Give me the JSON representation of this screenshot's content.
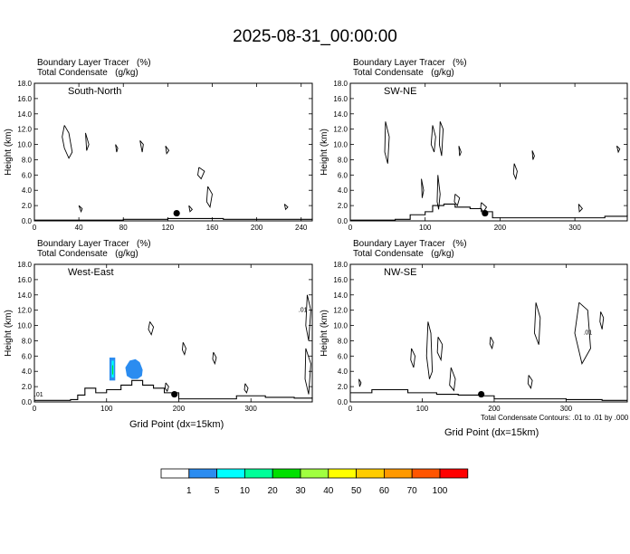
{
  "title": "2025-08-31_00:00:00",
  "panel_titles": {
    "line1": "Boundary Layer Tracer   (%)",
    "line2": "Total Condensate   (g/kg)"
  },
  "x_axis_label": "Grid Point (dx=15km)",
  "contour_note": "Total Condensate Contours: .01 to .01 by .000",
  "colorbar": {
    "colors": [
      "#ffffff",
      "#2b8cf0",
      "#00ffff",
      "#00ff99",
      "#00e000",
      "#a0ff40",
      "#ffff00",
      "#ffcc00",
      "#ff9900",
      "#ff5500",
      "#ff0000"
    ],
    "labels": [
      "1",
      "5",
      "10",
      "20",
      "30",
      "40",
      "50",
      "60",
      "70",
      "100"
    ]
  },
  "chart_data": [
    {
      "type": "contour",
      "name": "South-North",
      "ylabel": "Height (km)",
      "xlim": [
        0,
        250
      ],
      "ylim": [
        0,
        18
      ],
      "xticks": [
        "0",
        "40",
        "80",
        "120",
        "160",
        "200",
        "240"
      ],
      "yticks": [
        "0.0",
        "2.0",
        "4.0",
        "6.0",
        "8.0",
        "10.0",
        "12.0",
        "14.0",
        "16.0",
        "18.0"
      ],
      "marker": {
        "x": 128,
        "y": 1.0
      },
      "terrain": [
        [
          0,
          0.1
        ],
        [
          60,
          0.1
        ],
        [
          80,
          0.2
        ],
        [
          100,
          0.2
        ],
        [
          120,
          0.3
        ],
        [
          150,
          0.3
        ],
        [
          170,
          0.2
        ],
        [
          220,
          0.2
        ],
        [
          250,
          0.3
        ]
      ],
      "contours": [
        {
          "x": [
            27,
            31,
            34,
            31,
            27,
            25,
            27
          ],
          "y": [
            12.5,
            11.5,
            9.0,
            8.2,
            9.5,
            11,
            12.5
          ]
        },
        {
          "x": [
            46,
            49,
            47,
            46
          ],
          "y": [
            11.5,
            10,
            9.2,
            11.5
          ]
        },
        {
          "x": [
            73,
            75,
            74,
            73
          ],
          "y": [
            10,
            9.5,
            9,
            10
          ]
        },
        {
          "x": [
            95,
            98,
            97,
            95
          ],
          "y": [
            10.5,
            10,
            9,
            10.5
          ]
        },
        {
          "x": [
            118,
            121,
            119,
            118
          ],
          "y": [
            9.8,
            9.2,
            8.8,
            9.8
          ]
        },
        {
          "x": [
            148,
            153,
            150,
            147,
            148
          ],
          "y": [
            7,
            6.5,
            5.5,
            6,
            7
          ]
        },
        {
          "x": [
            156,
            160,
            158,
            155,
            156
          ],
          "y": [
            4.5,
            3.5,
            1.8,
            2.5,
            4.5
          ]
        },
        {
          "x": [
            40,
            43,
            42,
            40
          ],
          "y": [
            2,
            1.6,
            1.2,
            2
          ]
        },
        {
          "x": [
            139,
            142,
            140,
            139
          ],
          "y": [
            2,
            1.5,
            1.2,
            2
          ]
        },
        {
          "x": [
            225,
            228,
            226,
            225
          ],
          "y": [
            2.2,
            1.8,
            1.5,
            2.2
          ]
        }
      ],
      "shaded": []
    },
    {
      "type": "contour",
      "name": "SW-NE",
      "ylabel": "Height (km)",
      "xlim": [
        0,
        370
      ],
      "ylim": [
        0,
        18
      ],
      "xticks": [
        "0",
        "100",
        "200",
        "300"
      ],
      "yticks": [
        "0.0",
        "2.0",
        "4.0",
        "6.0",
        "8.0",
        "10.0",
        "12.0",
        "14.0",
        "16.0",
        "18.0"
      ],
      "marker": {
        "x": 180,
        "y": 1.0
      },
      "terrain": [
        [
          0,
          0.1
        ],
        [
          60,
          0.2
        ],
        [
          80,
          0.8
        ],
        [
          100,
          1.2
        ],
        [
          110,
          2.0
        ],
        [
          125,
          2.2
        ],
        [
          140,
          1.8
        ],
        [
          160,
          1.6
        ],
        [
          175,
          1.2
        ],
        [
          190,
          0.4
        ],
        [
          260,
          0.4
        ],
        [
          300,
          0.4
        ],
        [
          340,
          0.6
        ],
        [
          370,
          0.8
        ]
      ],
      "contours": [
        {
          "x": [
            47,
            52,
            50,
            46,
            47
          ],
          "y": [
            13,
            11,
            7.5,
            9,
            13
          ]
        },
        {
          "x": [
            110,
            114,
            112,
            108,
            110
          ],
          "y": [
            12.5,
            11,
            9,
            10,
            12.5
          ]
        },
        {
          "x": [
            120,
            124,
            122,
            119,
            120
          ],
          "y": [
            13,
            12,
            8.5,
            10,
            13
          ]
        },
        {
          "x": [
            145,
            148,
            146,
            145
          ],
          "y": [
            9.8,
            9,
            8.5,
            9.8
          ]
        },
        {
          "x": [
            219,
            223,
            221,
            218,
            219
          ],
          "y": [
            7.5,
            6.5,
            5.5,
            6.2,
            7.5
          ]
        },
        {
          "x": [
            243,
            246,
            244,
            243
          ],
          "y": [
            9.2,
            8.5,
            8,
            9.2
          ]
        },
        {
          "x": [
            117,
            120,
            118,
            116,
            117
          ],
          "y": [
            6,
            3.5,
            1.5,
            2.5,
            6
          ]
        },
        {
          "x": [
            95,
            98,
            96,
            95
          ],
          "y": [
            5.5,
            4,
            3,
            5.5
          ]
        },
        {
          "x": [
            140,
            146,
            143,
            139,
            140
          ],
          "y": [
            3.5,
            3,
            2,
            2.5,
            3.5
          ]
        },
        {
          "x": [
            175,
            182,
            178,
            174,
            175
          ],
          "y": [
            2.4,
            1.8,
            1.2,
            1.6,
            2.4
          ]
        },
        {
          "x": [
            305,
            310,
            306,
            305
          ],
          "y": [
            2.2,
            1.6,
            1.2,
            2.2
          ]
        },
        {
          "x": [
            356,
            360,
            358,
            356
          ],
          "y": [
            9.8,
            9.4,
            9,
            9.8
          ]
        }
      ],
      "shaded": []
    },
    {
      "type": "contour",
      "name": "West-East",
      "ylabel": "Height (km)",
      "xlim": [
        0,
        385
      ],
      "ylim": [
        0,
        18
      ],
      "xticks": [
        "0",
        "100",
        "200",
        "300"
      ],
      "yticks": [
        "0.0",
        "2.0",
        "4.0",
        "6.0",
        "8.0",
        "10.0",
        "12.0",
        "14.0",
        "16.0",
        "18.0"
      ],
      "marker": {
        "x": 194,
        "y": 1.0
      },
      "labels": [
        {
          "x": 372,
          "y": 11.8,
          "text": ".01"
        },
        {
          "x": 6,
          "y": 0.7,
          "text": ".01"
        }
      ],
      "terrain": [
        [
          0,
          0.2
        ],
        [
          50,
          0.3
        ],
        [
          60,
          0.9
        ],
        [
          70,
          1.8
        ],
        [
          85,
          1.2
        ],
        [
          100,
          1.6
        ],
        [
          120,
          2.2
        ],
        [
          135,
          2.8
        ],
        [
          150,
          2.2
        ],
        [
          165,
          1.8
        ],
        [
          180,
          1.2
        ],
        [
          200,
          0.4
        ],
        [
          260,
          0.4
        ],
        [
          280,
          0.8
        ],
        [
          320,
          0.6
        ],
        [
          360,
          0.5
        ],
        [
          385,
          0.6
        ]
      ],
      "contours": [
        {
          "x": [
            160,
            165,
            162,
            158,
            160
          ],
          "y": [
            10.5,
            9.8,
            8.8,
            9.5,
            10.5
          ]
        },
        {
          "x": [
            206,
            210,
            208,
            205,
            206
          ],
          "y": [
            7.8,
            7,
            6.2,
            6.8,
            7.8
          ]
        },
        {
          "x": [
            248,
            252,
            250,
            247,
            248
          ],
          "y": [
            6.5,
            5.8,
            5,
            5.6,
            6.5
          ]
        },
        {
          "x": [
            378,
            383,
            380,
            376,
            378
          ],
          "y": [
            14,
            12,
            8,
            10,
            14
          ]
        },
        {
          "x": [
            376,
            383,
            380,
            375,
            376
          ],
          "y": [
            7,
            5,
            1,
            3,
            7
          ]
        },
        {
          "x": [
            182,
            186,
            184,
            181,
            182
          ],
          "y": [
            2.5,
            2,
            1.4,
            1.8,
            2.5
          ]
        },
        {
          "x": [
            292,
            296,
            294,
            291,
            292
          ],
          "y": [
            2.4,
            1.8,
            1.2,
            1.6,
            2.4
          ]
        }
      ],
      "shaded": [
        {
          "x": [
            104,
            112,
            112,
            104
          ],
          "y": [
            5.8,
            5.8,
            2.8,
            2.8
          ],
          "color": "#2b8cf0"
        },
        {
          "x": [
            107,
            110,
            110,
            107
          ],
          "y": [
            5.4,
            5.4,
            3.2,
            3.2
          ],
          "color": "#00ffff"
        },
        {
          "x": [
            108,
            109,
            109,
            108
          ],
          "y": [
            4.8,
            4.8,
            3.6,
            3.6
          ],
          "color": "#00e000"
        },
        {
          "x": [
            126,
            132,
            140,
            146,
            150,
            149,
            143,
            135,
            128,
            126
          ],
          "y": [
            4.5,
            5.4,
            5.6,
            5.2,
            4.2,
            3.4,
            3.0,
            3.0,
            3.4,
            4.5
          ],
          "color": "#2b8cf0"
        }
      ]
    },
    {
      "type": "contour",
      "name": "NW-SE",
      "ylabel": "Height (km)",
      "xlim": [
        0,
        385
      ],
      "ylim": [
        0,
        18
      ],
      "xticks": [
        "0",
        "100",
        "200",
        "300"
      ],
      "yticks": [
        "0.0",
        "2.0",
        "4.0",
        "6.0",
        "8.0",
        "10.0",
        "12.0",
        "14.0",
        "16.0",
        "18.0"
      ],
      "marker": {
        "x": 182,
        "y": 1.0
      },
      "labels": [
        {
          "x": 330,
          "y": 8.8,
          "text": ".01"
        }
      ],
      "terrain": [
        [
          0,
          1.2
        ],
        [
          30,
          1.6
        ],
        [
          80,
          1.2
        ],
        [
          120,
          1.0
        ],
        [
          150,
          0.9
        ],
        [
          180,
          0.8
        ],
        [
          200,
          0.4
        ],
        [
          260,
          0.4
        ],
        [
          300,
          0.3
        ],
        [
          350,
          0.2
        ],
        [
          385,
          0.2
        ]
      ],
      "contours": [
        {
          "x": [
            108,
            112,
            114,
            110,
            106,
            108
          ],
          "y": [
            10.5,
            9,
            4,
            3,
            6,
            10.5
          ]
        },
        {
          "x": [
            122,
            128,
            126,
            121,
            122
          ],
          "y": [
            8.5,
            7.5,
            5.5,
            6.5,
            8.5
          ]
        },
        {
          "x": [
            85,
            90,
            88,
            84,
            85
          ],
          "y": [
            7,
            6,
            4.5,
            5.5,
            7
          ]
        },
        {
          "x": [
            258,
            264,
            262,
            256,
            258
          ],
          "y": [
            13,
            11,
            7.5,
            9,
            13
          ]
        },
        {
          "x": [
            318,
            330,
            334,
            322,
            312,
            318
          ],
          "y": [
            13,
            12,
            7,
            5,
            9,
            13
          ]
        },
        {
          "x": [
            348,
            352,
            350,
            347,
            348
          ],
          "y": [
            11.8,
            11,
            9.5,
            10.5,
            11.8
          ]
        },
        {
          "x": [
            195,
            199,
            197,
            194,
            195
          ],
          "y": [
            8.5,
            7.8,
            7,
            7.6,
            8.5
          ]
        },
        {
          "x": [
            140,
            146,
            144,
            138,
            140
          ],
          "y": [
            4.5,
            3,
            1.5,
            2.2,
            4.5
          ]
        },
        {
          "x": [
            248,
            253,
            251,
            247,
            248
          ],
          "y": [
            3.5,
            2.8,
            1.8,
            2.4,
            3.5
          ]
        },
        {
          "x": [
            12,
            15,
            13,
            12
          ],
          "y": [
            3,
            2.5,
            2,
            3
          ]
        }
      ],
      "shaded": []
    }
  ]
}
